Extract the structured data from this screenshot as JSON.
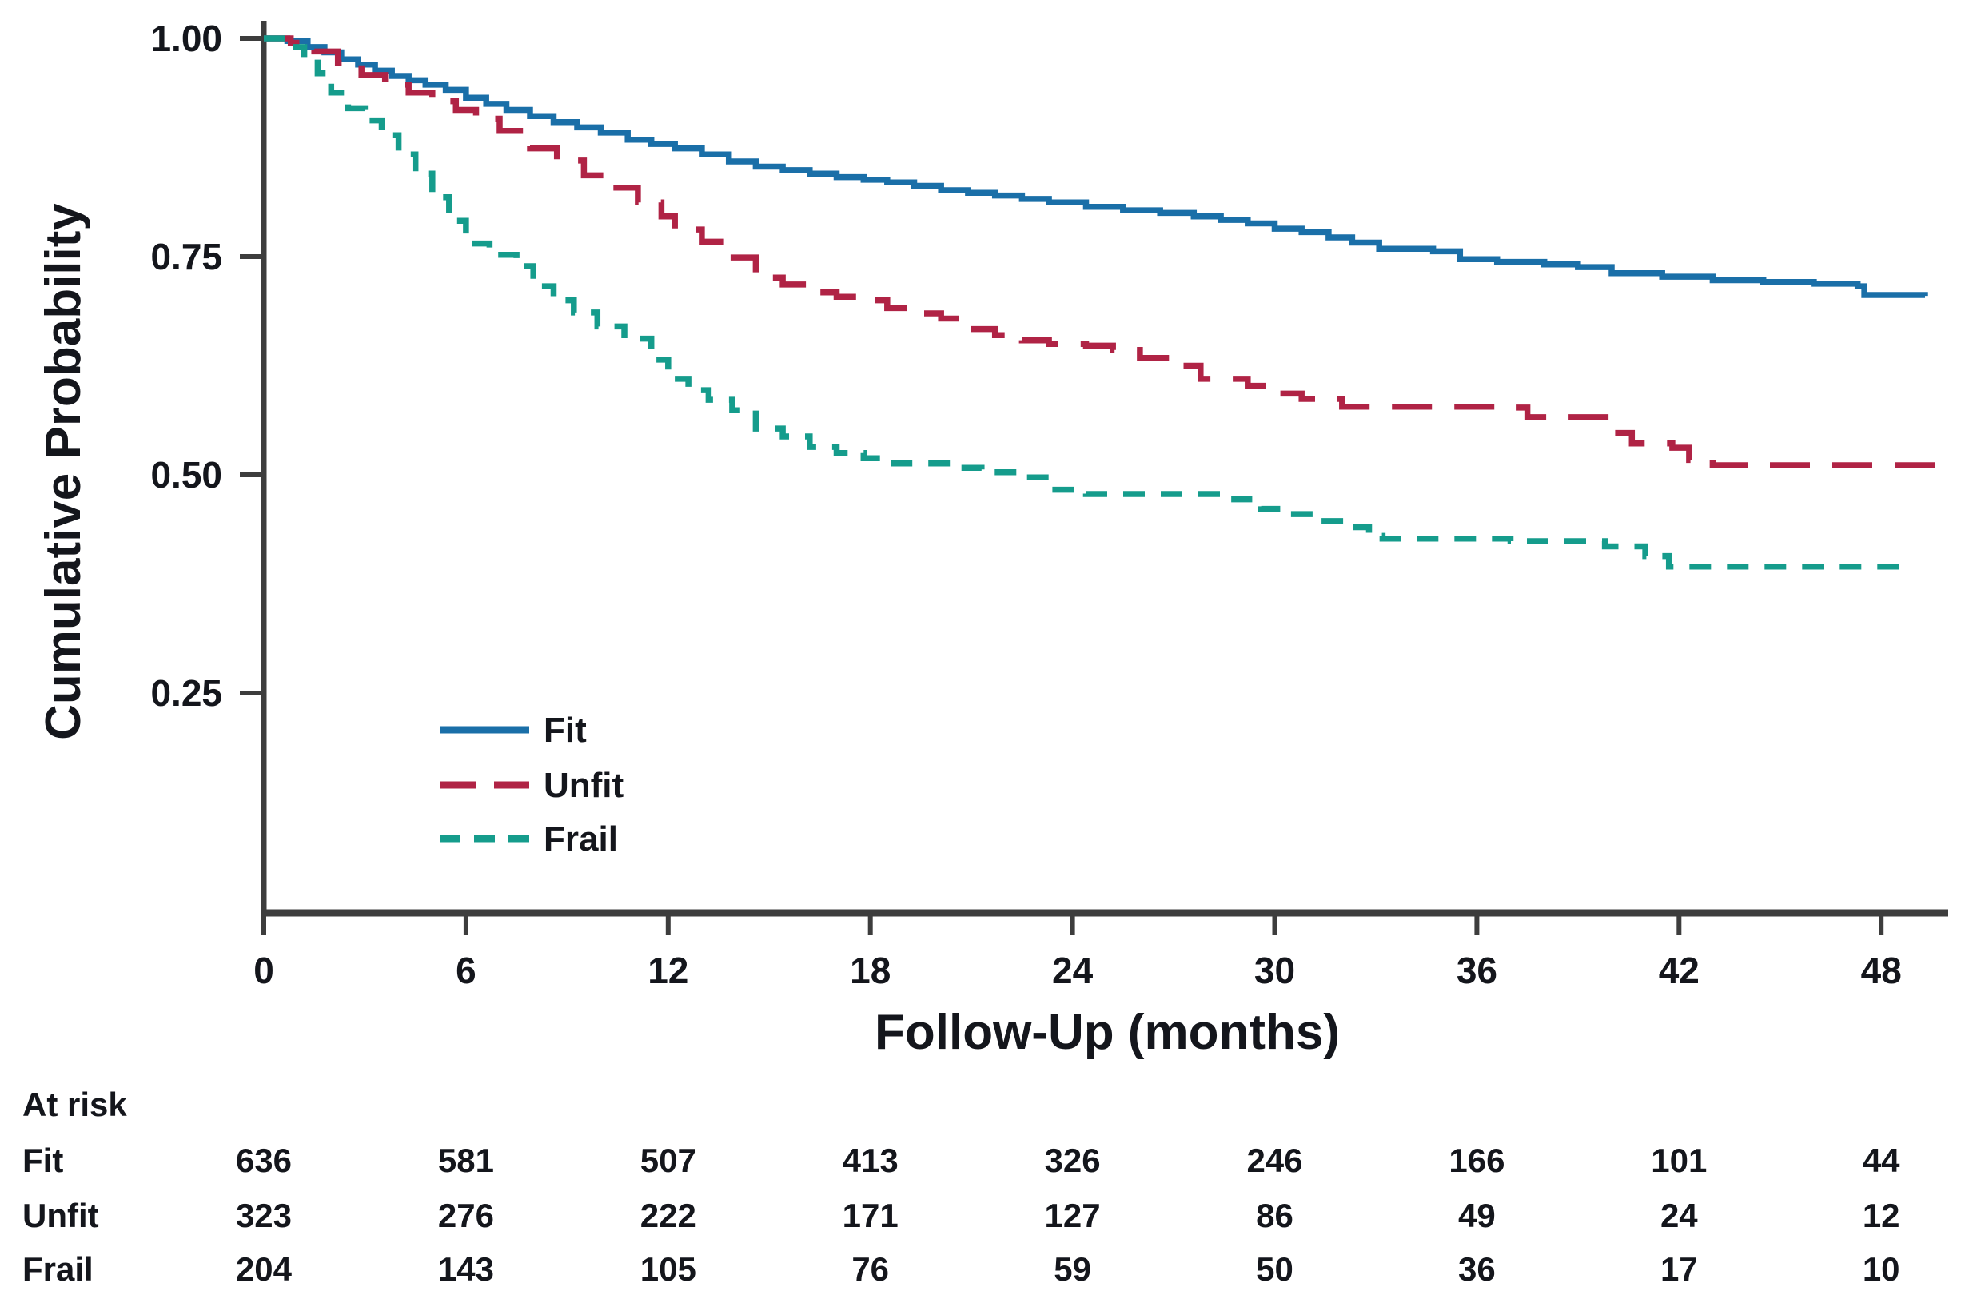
{
  "figure_colors": {
    "fit": "#1a6fa8",
    "unfit": "#b02345",
    "frail": "#159c8c",
    "axis": "#3d3d3d",
    "text": "#14161c"
  },
  "chart_data": {
    "type": "line",
    "subtype": "kaplan-meier-step",
    "title": "",
    "xlabel": "Follow-Up (months)",
    "ylabel": "Cumulative Probability",
    "xlim": [
      0,
      50
    ],
    "ylim": [
      0,
      1
    ],
    "grid": false,
    "legend_position": "inside-lower-left",
    "x_ticks": [
      0,
      6,
      12,
      18,
      24,
      30,
      36,
      42,
      48
    ],
    "y_ticks": [
      1.0,
      0.75,
      0.5,
      0.25
    ],
    "y_tick_labels": [
      "1.00",
      "0.75",
      "0.50",
      "0.25"
    ],
    "x_tick_labels": [
      "0",
      "6",
      "12",
      "18",
      "24",
      "30",
      "36",
      "42",
      "48"
    ],
    "series": [
      {
        "name": "Fit",
        "color": "#1a6fa8",
        "line_style": "solid",
        "points": [
          [
            0,
            1
          ],
          [
            0.7,
            0.997
          ],
          [
            1.3,
            0.99
          ],
          [
            1.8,
            0.984
          ],
          [
            2.3,
            0.976
          ],
          [
            2.8,
            0.97
          ],
          [
            3.3,
            0.963
          ],
          [
            3.8,
            0.957
          ],
          [
            4.3,
            0.952
          ],
          [
            4.8,
            0.947
          ],
          [
            5.4,
            0.941
          ],
          [
            6,
            0.932
          ],
          [
            6.6,
            0.925
          ],
          [
            7.2,
            0.918
          ],
          [
            7.9,
            0.911
          ],
          [
            8.6,
            0.904
          ],
          [
            9.3,
            0.898
          ],
          [
            10,
            0.892
          ],
          [
            10.8,
            0.884
          ],
          [
            11.5,
            0.879
          ],
          [
            12.2,
            0.874
          ],
          [
            13,
            0.867
          ],
          [
            13.8,
            0.859
          ],
          [
            14.6,
            0.853
          ],
          [
            15.4,
            0.849
          ],
          [
            16.2,
            0.845
          ],
          [
            17,
            0.841
          ],
          [
            17.8,
            0.838
          ],
          [
            18.5,
            0.835
          ],
          [
            19.3,
            0.831
          ],
          [
            20.1,
            0.826
          ],
          [
            20.9,
            0.823
          ],
          [
            21.7,
            0.82
          ],
          [
            22.5,
            0.816
          ],
          [
            23.3,
            0.812
          ],
          [
            24.4,
            0.807
          ],
          [
            25.5,
            0.803
          ],
          [
            26.6,
            0.8
          ],
          [
            27.6,
            0.796
          ],
          [
            28.4,
            0.792
          ],
          [
            29.2,
            0.788
          ],
          [
            30,
            0.782
          ],
          [
            30.8,
            0.778
          ],
          [
            31.6,
            0.772
          ],
          [
            32.3,
            0.766
          ],
          [
            33.1,
            0.759
          ],
          [
            34.7,
            0.756
          ],
          [
            35.5,
            0.747
          ],
          [
            36.6,
            0.744
          ],
          [
            38,
            0.741
          ],
          [
            39,
            0.738
          ],
          [
            40,
            0.731
          ],
          [
            41.5,
            0.727
          ],
          [
            43,
            0.723
          ],
          [
            44.5,
            0.721
          ],
          [
            46,
            0.719
          ],
          [
            47.3,
            0.716
          ],
          [
            47.5,
            0.706
          ],
          [
            49.3,
            0.705
          ]
        ]
      },
      {
        "name": "Unfit",
        "color": "#b02345",
        "line_style": "dash-long",
        "points": [
          [
            0,
            1
          ],
          [
            0.8,
            0.995
          ],
          [
            1.5,
            0.985
          ],
          [
            2.2,
            0.972
          ],
          [
            2.9,
            0.958
          ],
          [
            3.6,
            0.947
          ],
          [
            4.3,
            0.938
          ],
          [
            5,
            0.928
          ],
          [
            5.7,
            0.918
          ],
          [
            6.3,
            0.908
          ],
          [
            7,
            0.894
          ],
          [
            7.9,
            0.874
          ],
          [
            8.7,
            0.86
          ],
          [
            9.5,
            0.843
          ],
          [
            10.3,
            0.829
          ],
          [
            11.1,
            0.812
          ],
          [
            11.8,
            0.796
          ],
          [
            12.2,
            0.781
          ],
          [
            13,
            0.767
          ],
          [
            13.8,
            0.749
          ],
          [
            14.6,
            0.726
          ],
          [
            15.4,
            0.718
          ],
          [
            16.2,
            0.709
          ],
          [
            17,
            0.704
          ],
          [
            17.8,
            0.7
          ],
          [
            18.5,
            0.691
          ],
          [
            19.3,
            0.685
          ],
          [
            20.1,
            0.679
          ],
          [
            20.9,
            0.667
          ],
          [
            21.7,
            0.66
          ],
          [
            22.5,
            0.654
          ],
          [
            23.3,
            0.65
          ],
          [
            24.4,
            0.648
          ],
          [
            25.2,
            0.643
          ],
          [
            26,
            0.634
          ],
          [
            27,
            0.625
          ],
          [
            27.8,
            0.61
          ],
          [
            29.2,
            0.602
          ],
          [
            30,
            0.593
          ],
          [
            30.8,
            0.587
          ],
          [
            32,
            0.578
          ],
          [
            36.8,
            0.577
          ],
          [
            37.5,
            0.566
          ],
          [
            40,
            0.548
          ],
          [
            40.6,
            0.536
          ],
          [
            41.8,
            0.531
          ],
          [
            42.3,
            0.517
          ],
          [
            43,
            0.511
          ],
          [
            50,
            0.51
          ]
        ]
      },
      {
        "name": "Frail",
        "color": "#159c8c",
        "line_style": "dash-short",
        "points": [
          [
            0,
            1
          ],
          [
            0.8,
            0.99
          ],
          [
            1.2,
            0.976
          ],
          [
            1.6,
            0.96
          ],
          [
            2,
            0.938
          ],
          [
            2.5,
            0.92
          ],
          [
            3,
            0.906
          ],
          [
            3.5,
            0.889
          ],
          [
            4,
            0.867
          ],
          [
            4.5,
            0.845
          ],
          [
            5,
            0.818
          ],
          [
            5.5,
            0.791
          ],
          [
            6,
            0.765
          ],
          [
            6.7,
            0.752
          ],
          [
            7.5,
            0.739
          ],
          [
            8,
            0.716
          ],
          [
            8.6,
            0.7
          ],
          [
            9.2,
            0.686
          ],
          [
            9.9,
            0.67
          ],
          [
            10.7,
            0.656
          ],
          [
            11.5,
            0.632
          ],
          [
            12,
            0.61
          ],
          [
            12.6,
            0.597
          ],
          [
            13.2,
            0.586
          ],
          [
            13.9,
            0.574
          ],
          [
            14.6,
            0.553
          ],
          [
            15.4,
            0.544
          ],
          [
            16.2,
            0.532
          ],
          [
            17,
            0.525
          ],
          [
            17.8,
            0.519
          ],
          [
            18.6,
            0.513
          ],
          [
            20.5,
            0.508
          ],
          [
            21.3,
            0.503
          ],
          [
            22.5,
            0.497
          ],
          [
            23.4,
            0.483
          ],
          [
            24.4,
            0.478
          ],
          [
            28.8,
            0.472
          ],
          [
            29.6,
            0.461
          ],
          [
            30.4,
            0.455
          ],
          [
            31.2,
            0.447
          ],
          [
            32.3,
            0.44
          ],
          [
            32.8,
            0.43
          ],
          [
            33.2,
            0.427
          ],
          [
            37,
            0.424
          ],
          [
            39.8,
            0.418
          ],
          [
            41,
            0.407
          ],
          [
            41.7,
            0.395
          ],
          [
            48.6,
            0.394
          ]
        ]
      }
    ]
  },
  "legend": {
    "items": [
      {
        "label": "Fit",
        "color": "#1a6fa8",
        "line_style": "solid"
      },
      {
        "label": "Unfit",
        "color": "#b02345",
        "line_style": "dash-long"
      },
      {
        "label": "Frail",
        "color": "#159c8c",
        "line_style": "dash-short"
      }
    ]
  },
  "at_risk_table": {
    "header": "At risk",
    "time_points": [
      0,
      6,
      12,
      18,
      24,
      30,
      36,
      42,
      48
    ],
    "rows": [
      {
        "label": "Fit",
        "values": [
          "636",
          "581",
          "507",
          "413",
          "326",
          "246",
          "166",
          "101",
          "44"
        ]
      },
      {
        "label": "Unfit",
        "values": [
          "323",
          "276",
          "222",
          "171",
          "127",
          "86",
          "49",
          "24",
          "12"
        ]
      },
      {
        "label": "Frail",
        "values": [
          "204",
          "143",
          "105",
          "76",
          "59",
          "50",
          "36",
          "17",
          "10"
        ]
      }
    ]
  }
}
